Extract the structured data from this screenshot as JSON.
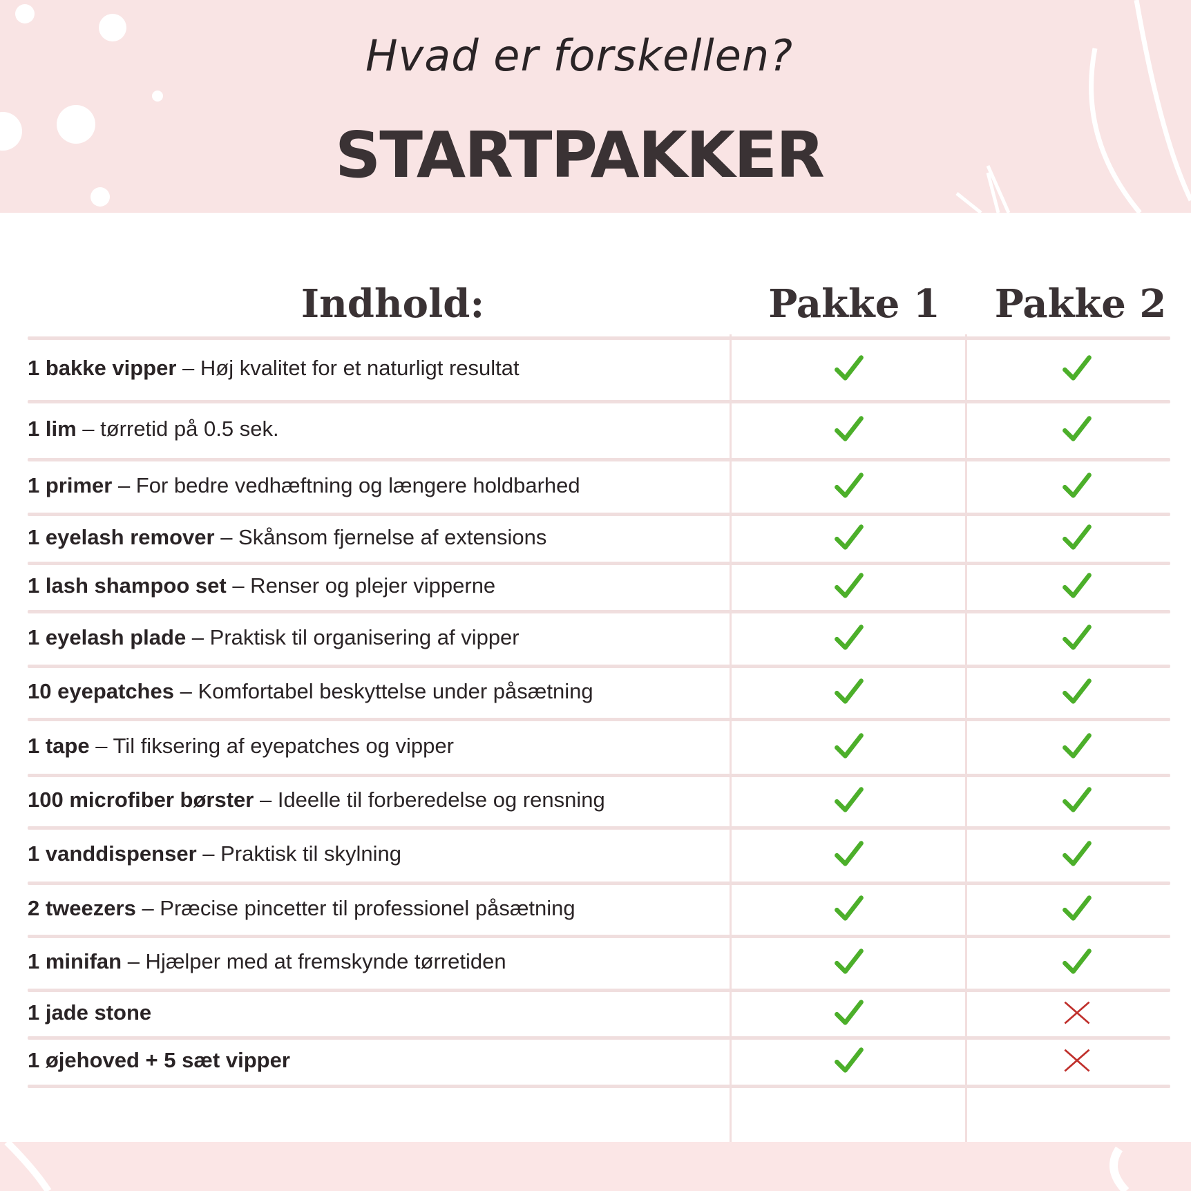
{
  "header": {
    "subtitle": "Hvad er forskellen?",
    "title": "STARTPAKKER"
  },
  "table": {
    "columns": [
      "Indhold:",
      "Pakke 1",
      "Pakke 2"
    ],
    "colors": {
      "check": "#4caf2a",
      "cross": "#c0302c",
      "background": "#f9e4e4"
    },
    "rows": [
      {
        "item": "1 bakke vipper",
        "desc": " – Høj kvalitet for et naturligt resultat",
        "pakke1": true,
        "pakke2": true
      },
      {
        "item": "1 lim",
        "desc": " – tørretid på 0.5 sek.",
        "pakke1": true,
        "pakke2": true
      },
      {
        "item": "1 primer",
        "desc": " – For bedre vedhæftning og længere holdbarhed",
        "pakke1": true,
        "pakke2": true
      },
      {
        "item": "1 eyelash remover",
        "desc": " – Skånsom fjernelse af extensions",
        "pakke1": true,
        "pakke2": true
      },
      {
        "item": "1 lash shampoo set",
        "desc": " – Renser og plejer vipperne",
        "pakke1": true,
        "pakke2": true
      },
      {
        "item": "1 eyelash plade",
        "desc": " – Praktisk til organisering af vipper",
        "pakke1": true,
        "pakke2": true
      },
      {
        "item": "10 eyepatches",
        "desc": " – Komfortabel beskyttelse under påsætning",
        "pakke1": true,
        "pakke2": true
      },
      {
        "item": "1 tape",
        "desc": " – Til fiksering af eyepatches og vipper",
        "pakke1": true,
        "pakke2": true
      },
      {
        "item": "100 microfiber børster",
        "desc": " – Ideelle til forberedelse og rensning",
        "pakke1": true,
        "pakke2": true
      },
      {
        "item": "1 vanddispenser",
        "desc": " – Praktisk til skylning",
        "pakke1": true,
        "pakke2": true
      },
      {
        "item": "2 tweezers",
        "desc": " – Præcise pincetter til professionel påsætning",
        "pakke1": true,
        "pakke2": true
      },
      {
        "item": "1 minifan",
        "desc": " – Hjælper med at fremskynde tørretiden",
        "pakke1": true,
        "pakke2": true
      },
      {
        "item": "1 jade stone",
        "desc": "",
        "pakke1": true,
        "pakke2": false
      },
      {
        "item": "1 øjehoved + 5 sæt vipper",
        "desc": "",
        "pakke1": true,
        "pakke2": false
      }
    ]
  }
}
